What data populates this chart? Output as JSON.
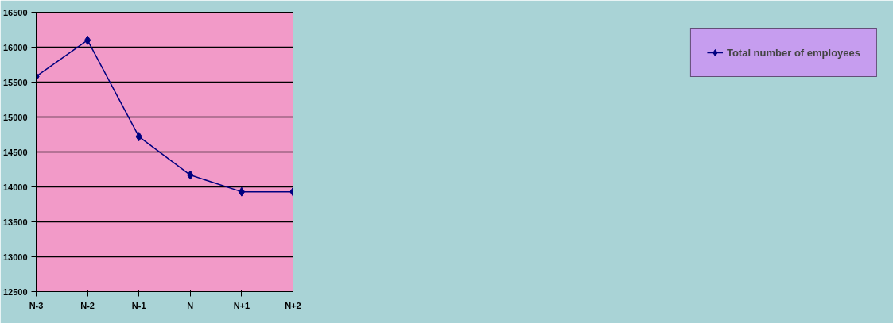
{
  "chart_data": {
    "type": "line",
    "categories": [
      "N-3",
      "N-2",
      "N-1",
      "N",
      "N+1",
      "N+2"
    ],
    "series": [
      {
        "name": "Total number of employees",
        "color": "#000080",
        "values": [
          15580,
          16100,
          14720,
          14170,
          13930,
          13930
        ]
      }
    ],
    "ylim": [
      12500,
      16500
    ],
    "yticks": [
      12500,
      13000,
      13500,
      14000,
      14500,
      15000,
      15500,
      16000,
      16500
    ],
    "grid": "y",
    "legend": "right",
    "marker": "diamond",
    "line_style": "solid"
  }
}
